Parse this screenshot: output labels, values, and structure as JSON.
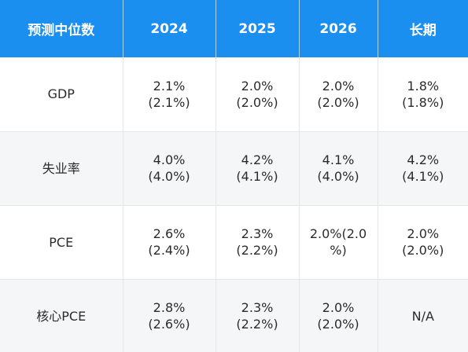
{
  "table": {
    "headers": [
      "预测中位数",
      "2024",
      "2025",
      "2026",
      "长期"
    ],
    "rows": [
      {
        "metric": "GDP",
        "cells": [
          {
            "value": "2.1%",
            "prior": "(2.1%)"
          },
          {
            "value": "2.0%",
            "prior": "(2.0%)"
          },
          {
            "value": "2.0%",
            "prior": "(2.0%)"
          },
          {
            "value": "1.8%",
            "prior": "(1.8%)"
          }
        ]
      },
      {
        "metric": "失业率",
        "cells": [
          {
            "value": "4.0%",
            "prior": "(4.0%)"
          },
          {
            "value": "4.2%",
            "prior": "(4.1%)"
          },
          {
            "value": "4.1%",
            "prior": "(4.0%)"
          },
          {
            "value": "4.2%",
            "prior": "(4.1%)"
          }
        ]
      },
      {
        "metric": "PCE",
        "cells": [
          {
            "value": "2.6%",
            "prior": "(2.4%)"
          },
          {
            "value": "2.3%",
            "prior": "(2.2%)"
          },
          {
            "value": "2.0%(2.0",
            "prior": "%)"
          },
          {
            "value": "2.0%",
            "prior": "(2.0%)"
          }
        ]
      },
      {
        "metric": "核心PCE",
        "cells": [
          {
            "value": "2.8%",
            "prior": "(2.6%)"
          },
          {
            "value": "2.3%",
            "prior": "(2.2%)"
          },
          {
            "value": "2.0%",
            "prior": "(2.0%)"
          },
          {
            "value": "N/A",
            "prior": ""
          }
        ]
      }
    ]
  },
  "colors": {
    "header_bg": "#1a8ff0",
    "header_text": "#ffffff",
    "row_alt_bg": "#f4f6f8",
    "body_text": "#2b2b2b"
  }
}
